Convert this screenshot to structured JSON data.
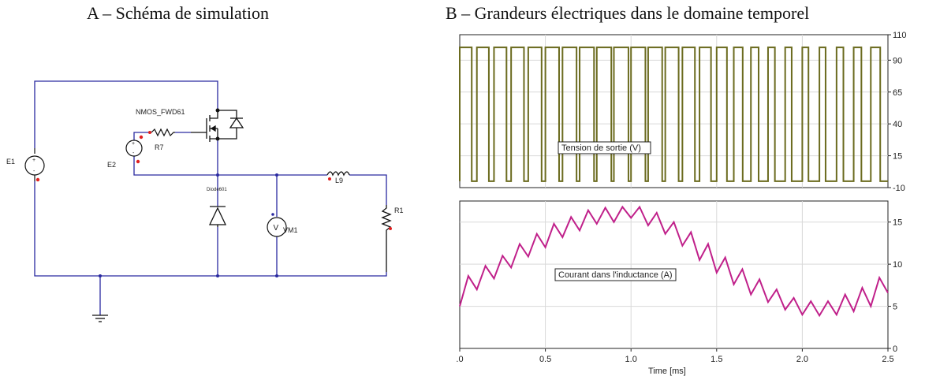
{
  "panel_a": {
    "title": "A – Schéma de simulation",
    "components": {
      "e1": "E1",
      "e2": "E2",
      "r7": "R7",
      "mosfet": "NMOS_FWD61",
      "diode": "Diode601",
      "l9": "L9",
      "vm1": "VM1",
      "vm_symbol": "V",
      "r1": "R1"
    }
  },
  "panel_b": {
    "title": "B – Grandeurs électriques dans le domaine temporel"
  },
  "colors": {
    "wire": "#2a2aa0",
    "voltage_trace": "#6b6b1f",
    "current_trace": "#c0208a",
    "grid": "#d9d9d9"
  },
  "chart_data": [
    {
      "type": "line",
      "name": "Tension de sortie (V)",
      "legend": "Tension de sortie (V)",
      "ylim": [
        -10,
        110
      ],
      "yticks": [
        -10,
        15,
        40,
        65,
        90,
        110
      ],
      "ytick_labels": [
        "-10",
        "15",
        "40",
        "65",
        "90",
        "110"
      ],
      "xlim": [
        0,
        2.5
      ],
      "high": 100,
      "low": -5,
      "pwm_period_ms": 0.1,
      "duty": [
        0.7,
        0.7,
        0.73,
        0.75,
        0.78,
        0.8,
        0.82,
        0.84,
        0.85,
        0.85,
        0.84,
        0.82,
        0.78,
        0.73,
        0.67,
        0.6,
        0.52,
        0.45,
        0.4,
        0.38,
        0.36,
        0.36,
        0.4,
        0.45,
        0.55
      ],
      "grid": true
    },
    {
      "type": "line",
      "name": "Courant dans l'inductance (A)",
      "legend": "Courant dans l'inductance (A)",
      "ylim": [
        0,
        17.5
      ],
      "yticks": [
        0,
        5,
        10,
        15
      ],
      "ytick_labels": [
        "0",
        "5",
        "10",
        "15"
      ],
      "xlim": [
        0,
        2.5
      ],
      "xticks": [
        0,
        0.5,
        1.0,
        1.5,
        2.0,
        2.5
      ],
      "xtick_labels": [
        ".0",
        "0.5",
        "1.0",
        "1.5",
        "2.0",
        "2.5"
      ],
      "xlabel": "Time [ms]",
      "x": [
        0,
        0.05,
        0.1,
        0.15,
        0.2,
        0.25,
        0.3,
        0.35,
        0.4,
        0.45,
        0.5,
        0.55,
        0.6,
        0.65,
        0.7,
        0.75,
        0.8,
        0.85,
        0.9,
        0.95,
        1.0,
        1.05,
        1.1,
        1.15,
        1.2,
        1.25,
        1.3,
        1.35,
        1.4,
        1.45,
        1.5,
        1.55,
        1.6,
        1.65,
        1.7,
        1.75,
        1.8,
        1.85,
        1.9,
        1.95,
        2.0,
        2.05,
        2.1,
        2.15,
        2.2,
        2.25,
        2.3,
        2.35,
        2.4,
        2.45,
        2.5
      ],
      "y": [
        5.0,
        8.6,
        7.0,
        9.8,
        8.3,
        11.0,
        9.6,
        12.4,
        10.9,
        13.6,
        12.0,
        14.8,
        13.2,
        15.6,
        14.0,
        16.4,
        14.8,
        16.7,
        15.0,
        16.8,
        15.5,
        16.8,
        14.6,
        16.1,
        13.6,
        15.0,
        12.2,
        13.8,
        10.5,
        12.4,
        9.0,
        10.8,
        7.6,
        9.4,
        6.4,
        8.2,
        5.5,
        7.0,
        4.6,
        6.0,
        4.0,
        5.6,
        3.9,
        5.6,
        4.0,
        6.4,
        4.4,
        7.2,
        5.0,
        8.4,
        6.6
      ],
      "grid": true
    }
  ]
}
